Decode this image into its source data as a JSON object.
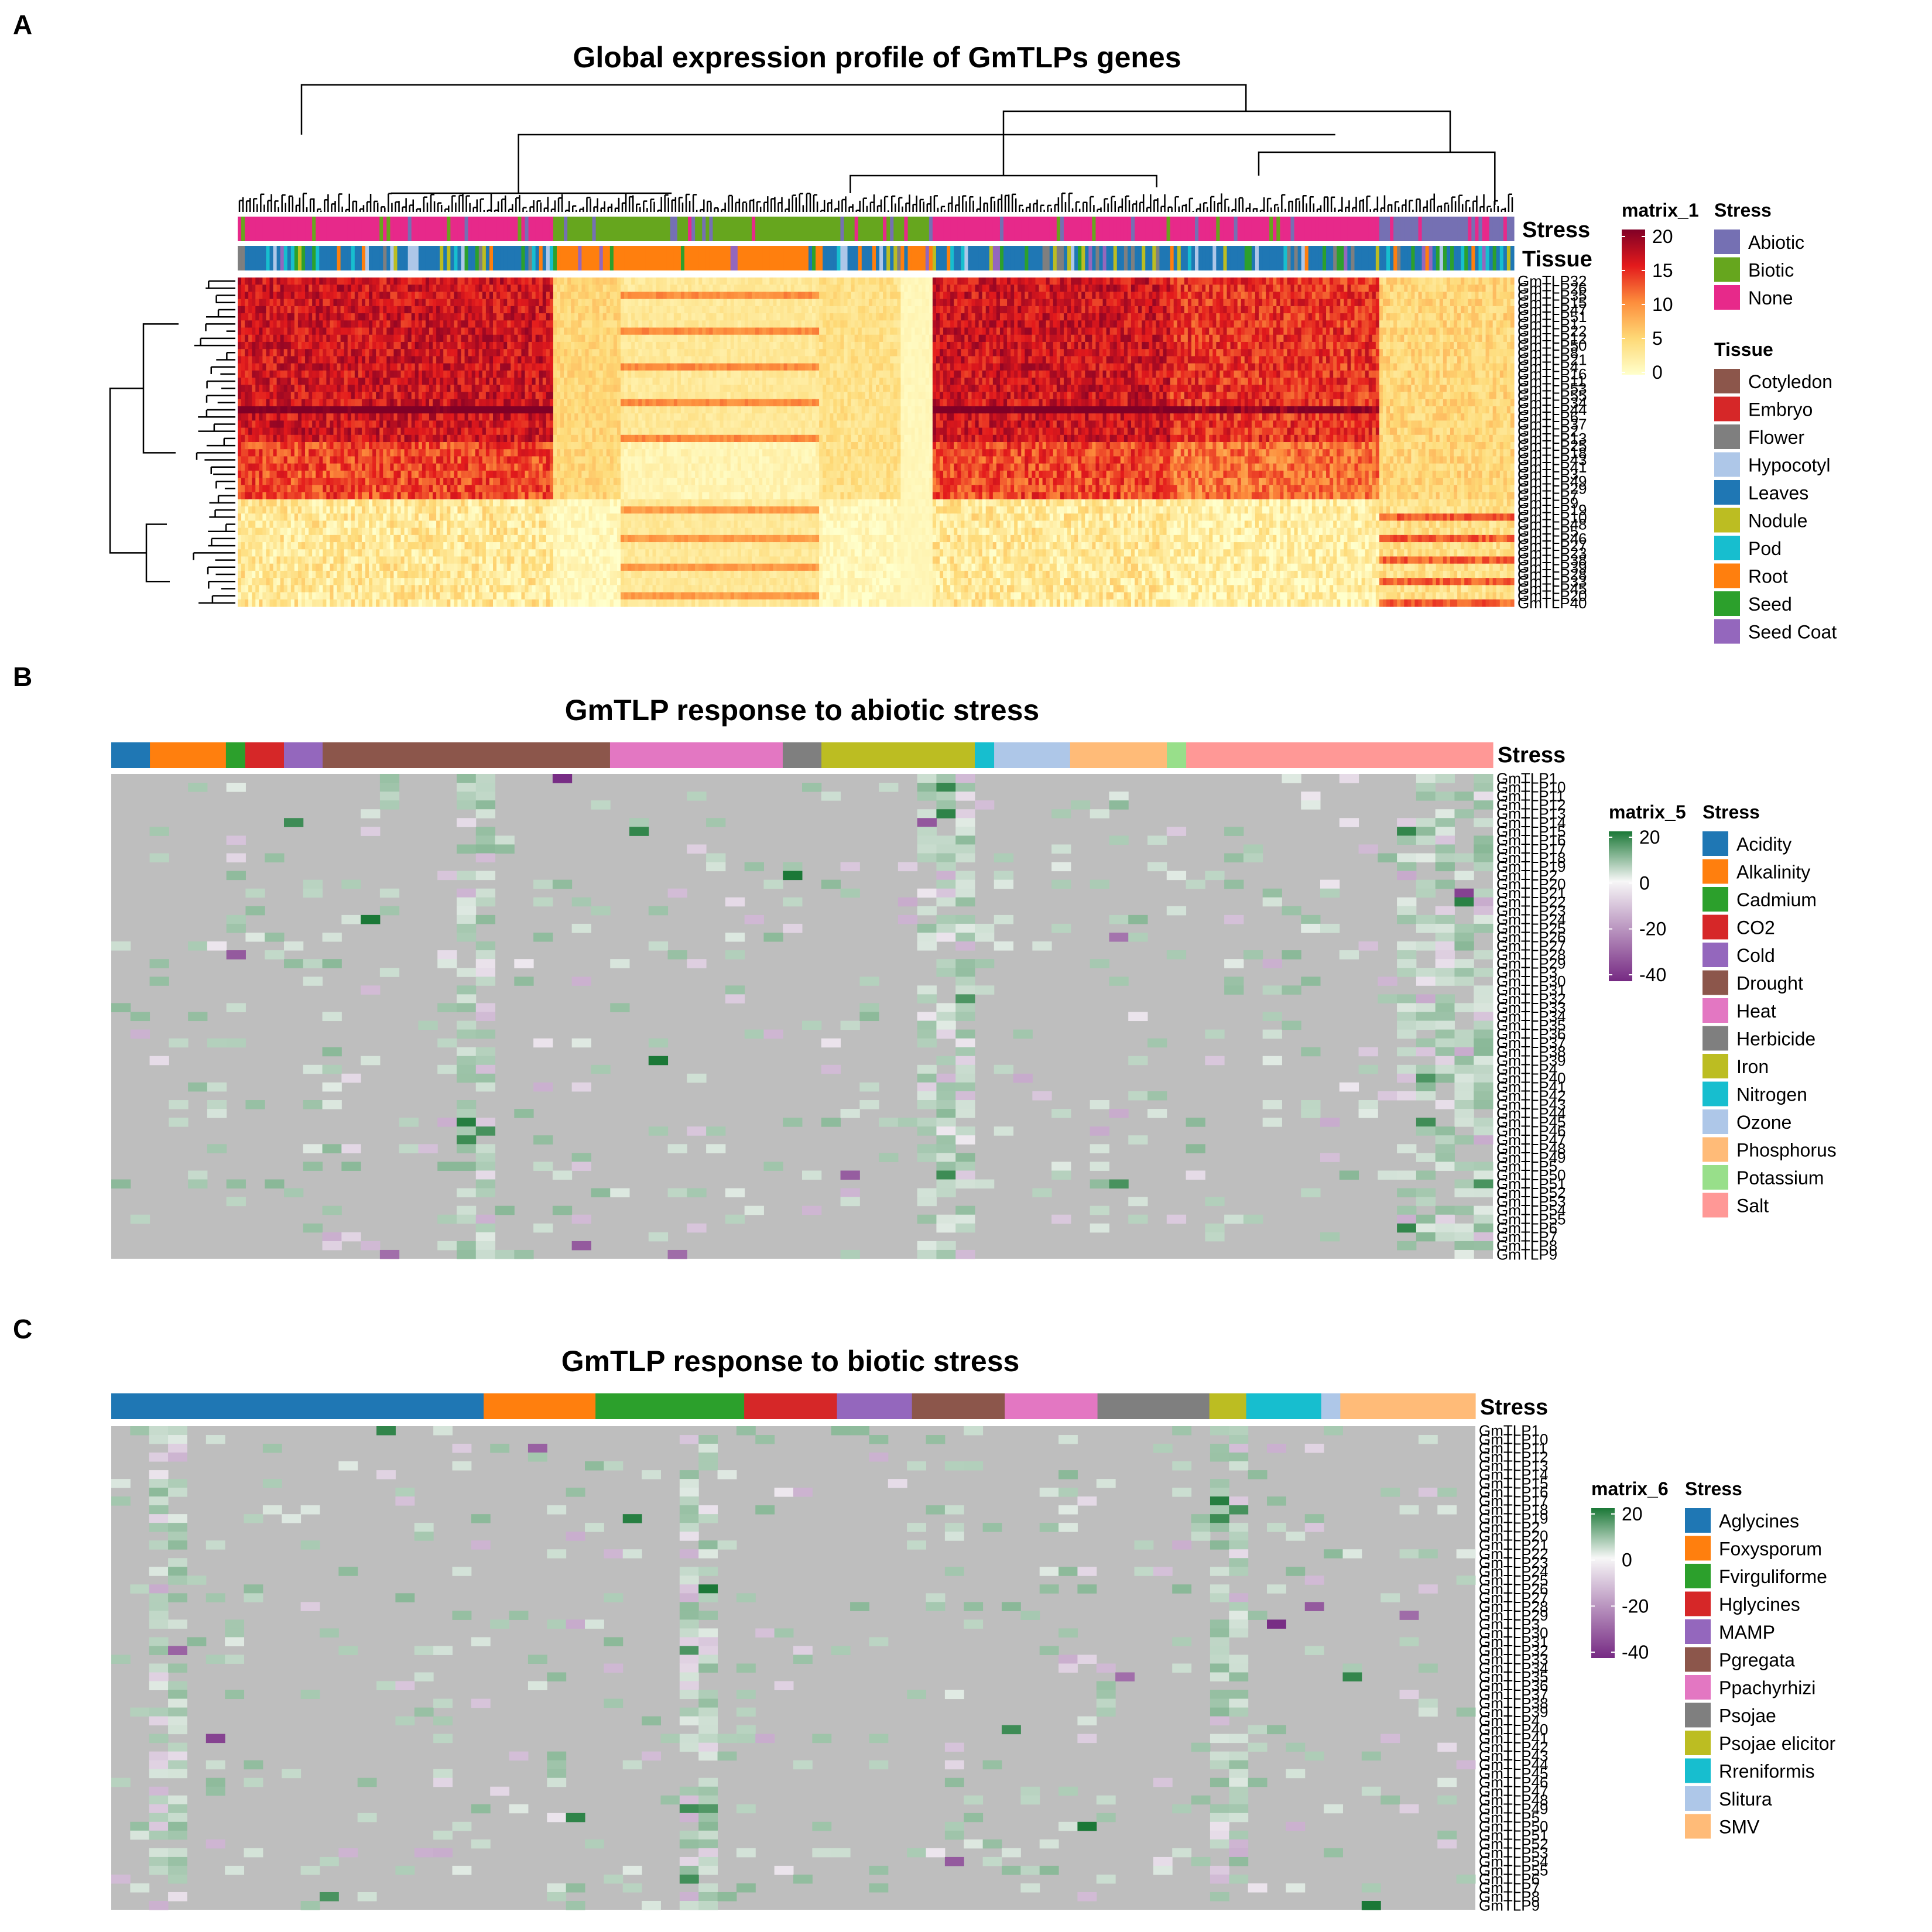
{
  "colors": {
    "heat": [
      "#FFFFCC",
      "#FED976",
      "#FD8D3C",
      "#E31A1C",
      "#800026"
    ],
    "diverge": {
      "neg": "#762A83",
      "mid": "#F7F7F7",
      "pos": "#1B7837",
      "na": "#BEBEBE"
    }
  },
  "panels": {
    "A": {
      "letter": "A",
      "title": "Global expression profile of GmTLPs genes",
      "annot_labels": [
        "Stress",
        "Tissue"
      ],
      "legend_matrix": {
        "title": "matrix_1",
        "ticks": [
          "20",
          "15",
          "10",
          "5",
          "0"
        ]
      },
      "legend_stress": {
        "title": "Stress",
        "items": [
          {
            "label": "Abiotic",
            "color": "#7570B3"
          },
          {
            "label": "Biotic",
            "color": "#66A61E"
          },
          {
            "label": "None",
            "color": "#E7298A"
          }
        ]
      },
      "legend_tissue": {
        "title": "Tissue",
        "items": [
          {
            "label": "Cotyledon",
            "color": "#8C564B"
          },
          {
            "label": "Embryo",
            "color": "#D62728"
          },
          {
            "label": "Flower",
            "color": "#7F7F7F"
          },
          {
            "label": "Hypocotyl",
            "color": "#AEC7E8"
          },
          {
            "label": "Leaves",
            "color": "#1F77B4"
          },
          {
            "label": "Nodule",
            "color": "#BCBD22"
          },
          {
            "label": "Pod",
            "color": "#17BECF"
          },
          {
            "label": "Root",
            "color": "#FF7F0E"
          },
          {
            "label": "Seed",
            "color": "#2CA02C"
          },
          {
            "label": "Seed Coat",
            "color": "#9467BD"
          }
        ]
      },
      "genes": [
        "GmTLP32",
        "GmTLP26",
        "GmTLP35",
        "GmTLP15",
        "GmTLP47",
        "GmTLP51",
        "GmTLP1",
        "GmTLP22",
        "GmTLP12",
        "GmTLP50",
        "GmTLP8",
        "GmTLP21",
        "GmTLP4",
        "GmTLP16",
        "GmTLP11",
        "GmTLP53",
        "GmTLP55",
        "GmTLP34",
        "GmTLP44",
        "GmTLP6",
        "GmTLP37",
        "GmTLP2",
        "GmTLP13",
        "GmTLP25",
        "GmTLP18",
        "GmTLP43",
        "GmTLP41",
        "GmTLP3",
        "GmTLP49",
        "GmTLP29",
        "GmTLP7",
        "GmTLP9",
        "GmTLP19",
        "GmTLP10",
        "GmTLP48",
        "GmTLP5",
        "GmTLP46",
        "GmTLP27",
        "GmTLP23",
        "GmTLP38",
        "GmTLP39",
        "GmTLP28",
        "GmTLP33",
        "GmTLP45",
        "GmTLP20",
        "GmTLP40"
      ],
      "chart_data": {
        "type": "heatmap",
        "title": "Global expression profile of GmTLPs genes",
        "color_scale_range": [
          0,
          20
        ],
        "rows": "genes (46)",
        "column_annotations": [
          "Stress",
          "Tissue"
        ],
        "legend_placement": "right"
      }
    },
    "B": {
      "letter": "B",
      "title": "GmTLP response to abiotic stress",
      "annot_label": "Stress",
      "legend_matrix": {
        "title": "matrix_5",
        "ticks": [
          "20",
          "0",
          "-20",
          "-40"
        ]
      },
      "legend_stress": {
        "title": "Stress",
        "items": [
          {
            "label": "Acidity",
            "color": "#1F77B4"
          },
          {
            "label": "Alkalinity",
            "color": "#FF7F0E"
          },
          {
            "label": "Cadmium",
            "color": "#2CA02C"
          },
          {
            "label": "CO2",
            "color": "#D62728"
          },
          {
            "label": "Cold",
            "color": "#9467BD"
          },
          {
            "label": "Drought",
            "color": "#8C564B"
          },
          {
            "label": "Heat",
            "color": "#E377C2"
          },
          {
            "label": "Herbicide",
            "color": "#7F7F7F"
          },
          {
            "label": "Iron",
            "color": "#BCBD22"
          },
          {
            "label": "Nitrogen",
            "color": "#17BECF"
          },
          {
            "label": "Ozone",
            "color": "#AEC7E8"
          },
          {
            "label": "Phosphorus",
            "color": "#FFBB78"
          },
          {
            "label": "Potassium",
            "color": "#98DF8A"
          },
          {
            "label": "Salt",
            "color": "#FF9896"
          }
        ]
      },
      "chart_data": {
        "type": "heatmap",
        "title": "GmTLP response to abiotic stress",
        "color_scale_range": [
          -40,
          20
        ],
        "column_annotation": "Stress",
        "legend_placement": "right"
      }
    },
    "C": {
      "letter": "C",
      "title": "GmTLP response to biotic stress",
      "annot_label": "Stress",
      "legend_matrix": {
        "title": "matrix_6",
        "ticks": [
          "20",
          "0",
          "-20",
          "-40"
        ]
      },
      "legend_stress": {
        "title": "Stress",
        "items": [
          {
            "label": "Aglycines",
            "color": "#1F77B4"
          },
          {
            "label": "Foxysporum",
            "color": "#FF7F0E"
          },
          {
            "label": "Fvirguliforme",
            "color": "#2CA02C"
          },
          {
            "label": "Hglycines",
            "color": "#D62728"
          },
          {
            "label": "MAMP",
            "color": "#9467BD"
          },
          {
            "label": "Pgregata",
            "color": "#8C564B"
          },
          {
            "label": "Ppachyrhizi",
            "color": "#E377C2"
          },
          {
            "label": "Psojae",
            "color": "#7F7F7F"
          },
          {
            "label": "Psojae elicitor",
            "color": "#BCBD22"
          },
          {
            "label": "Rreniformis",
            "color": "#17BECF"
          },
          {
            "label": "Slitura",
            "color": "#AEC7E8"
          },
          {
            "label": "SMV",
            "color": "#FFBB78"
          }
        ]
      },
      "chart_data": {
        "type": "heatmap",
        "title": "GmTLP response to biotic stress",
        "color_scale_range": [
          -40,
          20
        ],
        "column_annotation": "Stress",
        "legend_placement": "right"
      }
    }
  },
  "genes_sorted": [
    "GmTLP1",
    "GmTLP10",
    "GmTLP11",
    "GmTLP12",
    "GmTLP13",
    "GmTLP14",
    "GmTLP15",
    "GmTLP16",
    "GmTLP17",
    "GmTLP18",
    "GmTLP19",
    "GmTLP2",
    "GmTLP20",
    "GmTLP21",
    "GmTLP22",
    "GmTLP23",
    "GmTLP24",
    "GmTLP25",
    "GmTLP26",
    "GmTLP27",
    "GmTLP28",
    "GmTLP29",
    "GmTLP3",
    "GmTLP30",
    "GmTLP31",
    "GmTLP32",
    "GmTLP33",
    "GmTLP34",
    "GmTLP35",
    "GmTLP36",
    "GmTLP37",
    "GmTLP38",
    "GmTLP39",
    "GmTLP4",
    "GmTLP40",
    "GmTLP41",
    "GmTLP42",
    "GmTLP43",
    "GmTLP44",
    "GmTLP45",
    "GmTLP46",
    "GmTLP47",
    "GmTLP48",
    "GmTLP49",
    "GmTLP5",
    "GmTLP50",
    "GmTLP51",
    "GmTLP52",
    "GmTLP53",
    "GmTLP54",
    "GmTLP55",
    "GmTLP6",
    "GmTLP7",
    "GmTLP8",
    "GmTLP9"
  ]
}
